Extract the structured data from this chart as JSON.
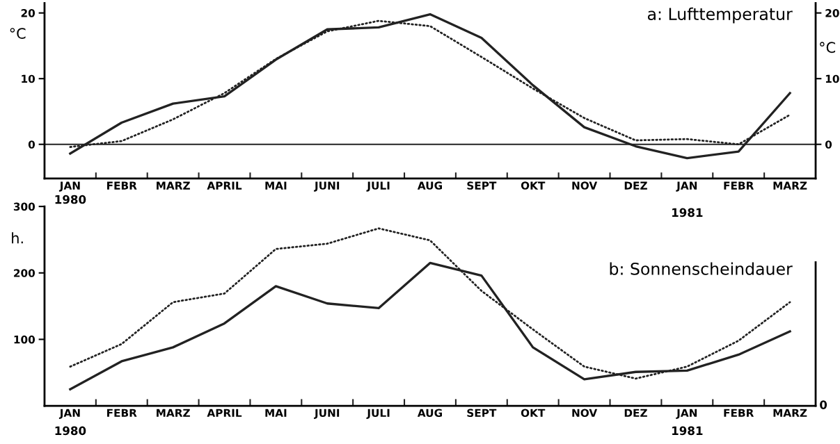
{
  "chart_data": [
    {
      "type": "line",
      "title": "a: Lufttemperatur",
      "ylabel": "°C",
      "y2label": "°C",
      "categories": [
        "JAN",
        "FEBR",
        "MARZ",
        "APRIL",
        "MAI",
        "JUNI",
        "JULI",
        "AUG",
        "SEPT",
        "OKT",
        "NOV",
        "DEZ",
        "JAN",
        "FEBR",
        "MARZ"
      ],
      "series": [
        {
          "color": "#222222",
          "line_style": "solid",
          "values": [
            -1.4,
            3.3,
            6.2,
            7.3,
            12.9,
            17.5,
            17.8,
            19.8,
            16.2,
            9.0,
            2.6,
            -0.3,
            -2.1,
            -1.1,
            7.8
          ]
        },
        {
          "color": "#222222",
          "line_style": "dotted",
          "values": [
            -0.4,
            0.5,
            3.8,
            7.8,
            13.0,
            17.2,
            18.8,
            18.0,
            13.3,
            8.5,
            4.0,
            0.6,
            0.8,
            0.0,
            4.5
          ]
        }
      ],
      "ylim": [
        -5.2,
        21.5
      ],
      "yticks": [
        0,
        10,
        20
      ],
      "y2lim": [
        -5.2,
        21.5
      ],
      "y2ticks": [
        0,
        10,
        20
      ],
      "ref_lines": [
        {
          "axis": "y",
          "value": 0
        }
      ],
      "annotations": [
        "1981"
      ],
      "grid": false,
      "legend": false,
      "marker": "none"
    },
    {
      "type": "line",
      "title": "b: Sonnenscheindauer",
      "ylabel": "h.",
      "categories": [
        "JAN",
        "FEBR",
        "MARZ",
        "APRIL",
        "MAI",
        "JUNI",
        "JULI",
        "AUG",
        "SEPT",
        "OKT",
        "NOV",
        "DEZ",
        "JAN",
        "FEBR",
        "MARZ"
      ],
      "series": [
        {
          "color": "#222222",
          "line_style": "solid",
          "values": [
            25,
            67,
            88,
            124,
            180,
            154,
            147,
            215,
            196,
            88,
            40,
            51,
            53,
            77,
            112
          ]
        },
        {
          "color": "#222222",
          "line_style": "dotted",
          "values": [
            59,
            93,
            156,
            169,
            236,
            244,
            267,
            249,
            173,
            115,
            59,
            41,
            59,
            98,
            156
          ]
        }
      ],
      "ylim": [
        0,
        300
      ],
      "yticks": [
        100,
        200,
        300
      ],
      "annotations": [
        "1980",
        "1980",
        "1981",
        "0"
      ],
      "grid": false,
      "legend": false,
      "marker": "none"
    }
  ]
}
